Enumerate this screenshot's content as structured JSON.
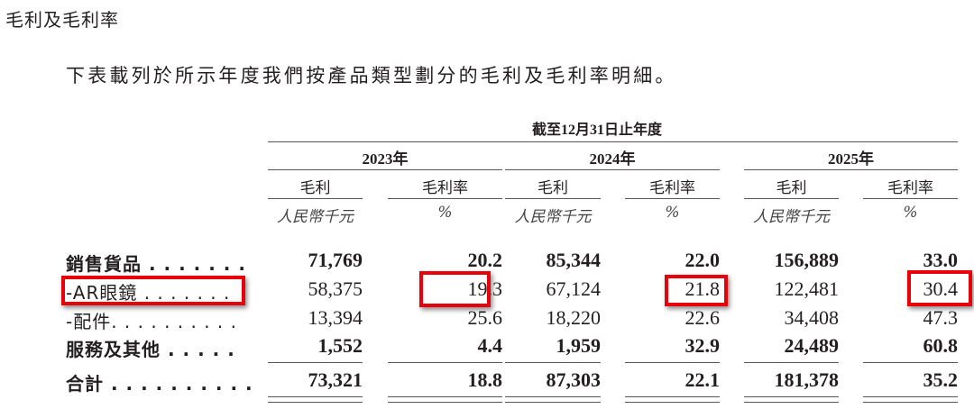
{
  "section_title": "毛利及毛利率",
  "intro": "下表載列於所示年度我們按產品類型劃分的毛利及毛利率明細。",
  "period_header": "截至12月31日止年度",
  "years": [
    "2023年",
    "2024年",
    "2025年"
  ],
  "column_headers": {
    "gross_profit": "毛利",
    "margin": "毛利率"
  },
  "units": {
    "gross_profit": "人民幣千元",
    "margin": "%"
  },
  "rows": [
    {
      "label": "銷售貨品 . . . . . . .",
      "bold": true,
      "values": [
        "71,769",
        "20.2",
        "85,344",
        "22.0",
        "156,889",
        "33.0"
      ]
    },
    {
      "label": "-AR眼鏡 . . . . . . .",
      "bold": false,
      "values": [
        "58,375",
        "19.3",
        "67,124",
        "21.8",
        "122,481",
        "30.4"
      ]
    },
    {
      "label": "-配件. . . . . . . . . .",
      "bold": false,
      "values": [
        "13,394",
        "25.6",
        "18,220",
        "22.6",
        "34,408",
        "47.3"
      ]
    },
    {
      "label": "服務及其他 . . . . .",
      "bold": true,
      "values": [
        "1,552",
        "4.4",
        "1,959",
        "32.9",
        "24,489",
        "60.8"
      ]
    },
    {
      "label": "合計 . . . . . . . . . .",
      "bold": true,
      "values": [
        "73,321",
        "18.8",
        "87,303",
        "22.1",
        "181,378",
        "35.2"
      ]
    }
  ],
  "highlight_color": "#e8000b",
  "highlighted_cells": [
    "-AR眼鏡 label",
    "2023 毛利率 19.3",
    "2024 毛利率 21.8",
    "2025 毛利率 30.4"
  ]
}
